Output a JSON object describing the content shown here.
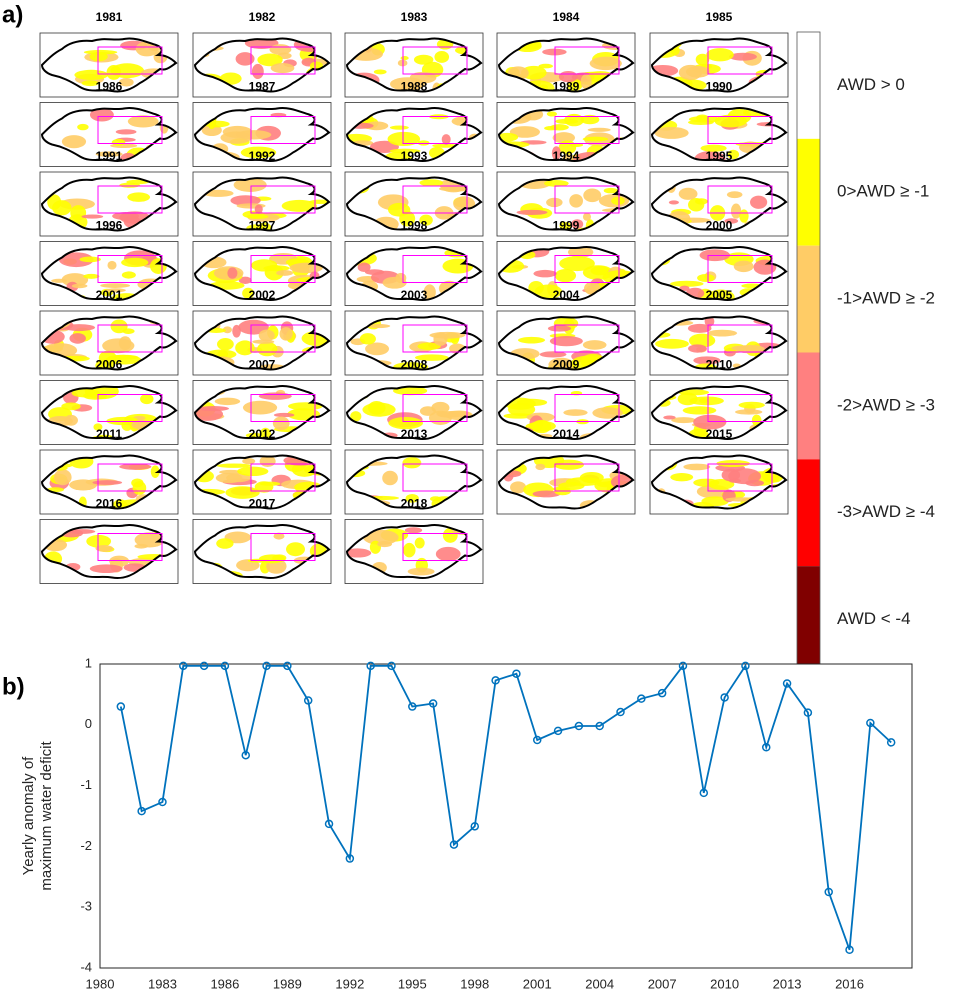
{
  "panel_labels": [
    "a)",
    "b)"
  ],
  "maps": {
    "titles": [
      "1981",
      "1982",
      "1983",
      "1984",
      "1985",
      "1986",
      "1987",
      "1988",
      "1989",
      "1990",
      "1991",
      "1992",
      "1993",
      "1994",
      "1995",
      "1996",
      "1997",
      "1998",
      "1999",
      "2000",
      "2001",
      "2002",
      "2003",
      "2004",
      "2005",
      "2006",
      "2007",
      "2008",
      "2009",
      "2010",
      "2011",
      "2012",
      "2013",
      "2014",
      "2015",
      "2016",
      "2017",
      "2018"
    ]
  },
  "legend": {
    "labels": [
      "AWD > 0",
      "0>AWD ≥ -1",
      "-1>AWD ≥ -2",
      "-2>AWD ≥ -3",
      "-3>AWD ≥ -4",
      "AWD < -4"
    ],
    "colors": [
      "#ffffff",
      "#ffff00",
      "#ffcc66",
      "#ff8080",
      "#ff0000",
      "#800000"
    ]
  },
  "chart_data": {
    "type": "line",
    "ylabel": [
      "Yearly anomaly of",
      "maximum water deficit"
    ],
    "x": [
      1981,
      1982,
      1983,
      1984,
      1985,
      1986,
      1987,
      1988,
      1989,
      1990,
      1991,
      1992,
      1993,
      1994,
      1995,
      1996,
      1997,
      1998,
      1999,
      2000,
      2001,
      2002,
      2003,
      2004,
      2005,
      2006,
      2007,
      2008,
      2009,
      2010,
      2011,
      2012,
      2013,
      2014,
      2015,
      2016,
      2017,
      2018
    ],
    "series": [
      {
        "color": "#0072bd",
        "values": [
          0.3,
          -1.42,
          -1.27,
          0.97,
          0.97,
          0.97,
          -0.5,
          0.97,
          0.97,
          0.4,
          -1.63,
          -2.2,
          0.97,
          0.97,
          0.3,
          0.35,
          -1.97,
          -1.67,
          0.73,
          0.84,
          -0.25,
          -0.1,
          -0.02,
          -0.02,
          0.21,
          0.43,
          0.52,
          0.97,
          -1.12,
          0.45,
          0.97,
          -0.37,
          0.68,
          0.2,
          -2.75,
          -3.7,
          0.03,
          -0.29
        ]
      }
    ],
    "xlim": [
      1980,
      2019
    ],
    "xticks": [
      1980,
      1983,
      1986,
      1989,
      1992,
      1995,
      1998,
      2001,
      2004,
      2007,
      2010,
      2013,
      2016
    ],
    "ylim": [
      -4,
      1
    ],
    "yticks": [
      -4,
      -3,
      -2,
      -1,
      0,
      1
    ],
    "grid": true
  }
}
